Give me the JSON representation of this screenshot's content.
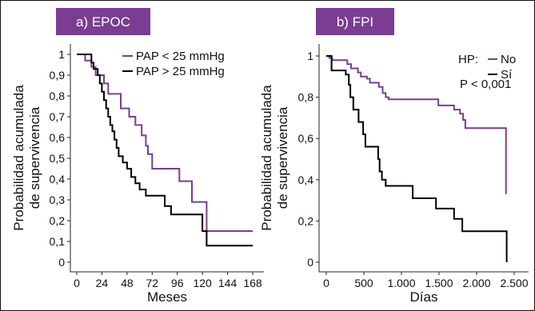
{
  "chart_data": [
    {
      "type": "line",
      "panel_label": "a) EPOC",
      "xlabel": "Meses",
      "ylabel_lines": [
        "Probabilidad acumulada",
        "de supervivencia"
      ],
      "xlim": [
        0,
        168
      ],
      "ylim": [
        0,
        1
      ],
      "x_ticks": [
        0,
        24,
        48,
        72,
        96,
        120,
        144,
        168
      ],
      "x_tick_labels": [
        "0",
        "24",
        "48",
        "72",
        "96",
        "120",
        "144",
        "168"
      ],
      "y_ticks": [
        0,
        0.1,
        0.2,
        0.3,
        0.4,
        0.5,
        0.6,
        0.7,
        0.8,
        0.9,
        1
      ],
      "y_tick_labels": [
        "0",
        "0,1",
        "0,2",
        "0,3",
        "0,4",
        "0,5",
        "0,6",
        "0,7",
        "0,8",
        "0,9",
        "1"
      ],
      "legend": {
        "position": "top-right",
        "prefix": "",
        "items": [
          "PAP < 25 mmHg",
          "PAP > 25 mmHg"
        ]
      },
      "annotation": "",
      "series": [
        {
          "name": "PAP < 25 mmHg",
          "color": "#7a3d91",
          "step_points": [
            [
              0,
              1
            ],
            [
              8,
              1
            ],
            [
              8,
              0.97
            ],
            [
              14,
              0.97
            ],
            [
              14,
              0.94
            ],
            [
              18,
              0.94
            ],
            [
              18,
              0.9
            ],
            [
              26,
              0.9
            ],
            [
              26,
              0.86
            ],
            [
              30,
              0.86
            ],
            [
              30,
              0.81
            ],
            [
              42,
              0.81
            ],
            [
              42,
              0.74
            ],
            [
              50,
              0.74
            ],
            [
              50,
              0.7
            ],
            [
              56,
              0.7
            ],
            [
              56,
              0.66
            ],
            [
              62,
              0.66
            ],
            [
              62,
              0.61
            ],
            [
              66,
              0.61
            ],
            [
              66,
              0.56
            ],
            [
              68,
              0.56
            ],
            [
              68,
              0.52
            ],
            [
              72,
              0.52
            ],
            [
              72,
              0.45
            ],
            [
              98,
              0.45
            ],
            [
              98,
              0.39
            ],
            [
              110,
              0.39
            ],
            [
              110,
              0.29
            ],
            [
              124,
              0.29
            ],
            [
              124,
              0.15
            ],
            [
              168,
              0.15
            ]
          ]
        },
        {
          "name": "PAP > 25 mmHg",
          "color": "#000000",
          "step_points": [
            [
              0,
              1
            ],
            [
              14,
              1
            ],
            [
              14,
              0.96
            ],
            [
              16,
              0.96
            ],
            [
              16,
              0.93
            ],
            [
              20,
              0.93
            ],
            [
              20,
              0.9
            ],
            [
              22,
              0.9
            ],
            [
              22,
              0.86
            ],
            [
              24,
              0.86
            ],
            [
              24,
              0.82
            ],
            [
              26,
              0.82
            ],
            [
              26,
              0.78
            ],
            [
              28,
              0.78
            ],
            [
              28,
              0.74
            ],
            [
              30,
              0.74
            ],
            [
              30,
              0.7
            ],
            [
              32,
              0.7
            ],
            [
              32,
              0.66
            ],
            [
              34,
              0.66
            ],
            [
              34,
              0.63
            ],
            [
              36,
              0.63
            ],
            [
              36,
              0.59
            ],
            [
              38,
              0.59
            ],
            [
              38,
              0.55
            ],
            [
              40,
              0.55
            ],
            [
              40,
              0.51
            ],
            [
              44,
              0.51
            ],
            [
              44,
              0.48
            ],
            [
              48,
              0.48
            ],
            [
              48,
              0.45
            ],
            [
              52,
              0.45
            ],
            [
              52,
              0.41
            ],
            [
              56,
              0.41
            ],
            [
              56,
              0.38
            ],
            [
              60,
              0.38
            ],
            [
              60,
              0.35
            ],
            [
              66,
              0.35
            ],
            [
              66,
              0.32
            ],
            [
              84,
              0.32
            ],
            [
              84,
              0.27
            ],
            [
              90,
              0.27
            ],
            [
              90,
              0.23
            ],
            [
              120,
              0.23
            ],
            [
              120,
              0.15
            ],
            [
              124,
              0.15
            ],
            [
              124,
              0.08
            ],
            [
              168,
              0.08
            ]
          ]
        }
      ]
    },
    {
      "type": "line",
      "panel_label": "b) FPI",
      "xlabel": "Días",
      "ylabel_lines": [
        "Probabilidad acumulada",
        "de supervivencia"
      ],
      "xlim": [
        0,
        2500
      ],
      "ylim": [
        0,
        1
      ],
      "x_ticks": [
        0,
        500,
        1000,
        1500,
        2000,
        2500
      ],
      "x_tick_labels": [
        "0",
        "500",
        "1.000",
        "1.500",
        "2.000",
        "2.500"
      ],
      "y_ticks": [
        0,
        0.2,
        0.4,
        0.6,
        0.8,
        1
      ],
      "y_tick_labels": [
        "0",
        "0,2",
        "0,4",
        "0,6",
        "0,8",
        "1"
      ],
      "legend": {
        "position": "top-right",
        "prefix": "HP:",
        "items": [
          "No",
          "Sí"
        ]
      },
      "annotation": "P < 0,001",
      "series": [
        {
          "name": "No",
          "color": "#7a3d91",
          "step_points": [
            [
              0,
              1
            ],
            [
              40,
              1
            ],
            [
              40,
              0.99
            ],
            [
              80,
              0.99
            ],
            [
              80,
              0.98
            ],
            [
              280,
              0.98
            ],
            [
              280,
              0.96
            ],
            [
              330,
              0.96
            ],
            [
              330,
              0.94
            ],
            [
              420,
              0.94
            ],
            [
              420,
              0.92
            ],
            [
              460,
              0.92
            ],
            [
              460,
              0.9
            ],
            [
              540,
              0.9
            ],
            [
              540,
              0.89
            ],
            [
              580,
              0.89
            ],
            [
              580,
              0.87
            ],
            [
              700,
              0.87
            ],
            [
              700,
              0.85
            ],
            [
              750,
              0.85
            ],
            [
              750,
              0.82
            ],
            [
              790,
              0.82
            ],
            [
              790,
              0.8
            ],
            [
              830,
              0.8
            ],
            [
              830,
              0.79
            ],
            [
              1490,
              0.79
            ],
            [
              1490,
              0.76
            ],
            [
              1700,
              0.76
            ],
            [
              1700,
              0.74
            ],
            [
              1780,
              0.74
            ],
            [
              1780,
              0.72
            ],
            [
              1820,
              0.72
            ],
            [
              1820,
              0.69
            ],
            [
              1850,
              0.69
            ],
            [
              1850,
              0.65
            ],
            [
              2390,
              0.65
            ],
            [
              2390,
              0.33
            ]
          ]
        },
        {
          "name": "Sí",
          "color": "#000000",
          "step_points": [
            [
              0,
              1
            ],
            [
              70,
              1
            ],
            [
              70,
              0.93
            ],
            [
              260,
              0.93
            ],
            [
              260,
              0.91
            ],
            [
              300,
              0.91
            ],
            [
              300,
              0.86
            ],
            [
              320,
              0.86
            ],
            [
              320,
              0.8
            ],
            [
              360,
              0.8
            ],
            [
              360,
              0.74
            ],
            [
              430,
              0.74
            ],
            [
              430,
              0.68
            ],
            [
              490,
              0.68
            ],
            [
              490,
              0.62
            ],
            [
              520,
              0.62
            ],
            [
              520,
              0.56
            ],
            [
              690,
              0.56
            ],
            [
              690,
              0.5
            ],
            [
              710,
              0.5
            ],
            [
              710,
              0.44
            ],
            [
              740,
              0.44
            ],
            [
              740,
              0.4
            ],
            [
              790,
              0.4
            ],
            [
              790,
              0.37
            ],
            [
              1150,
              0.37
            ],
            [
              1150,
              0.31
            ],
            [
              1460,
              0.31
            ],
            [
              1460,
              0.26
            ],
            [
              1700,
              0.26
            ],
            [
              1700,
              0.21
            ],
            [
              1810,
              0.21
            ],
            [
              1810,
              0.15
            ],
            [
              2400,
              0.15
            ],
            [
              2400,
              0
            ]
          ]
        }
      ]
    }
  ]
}
